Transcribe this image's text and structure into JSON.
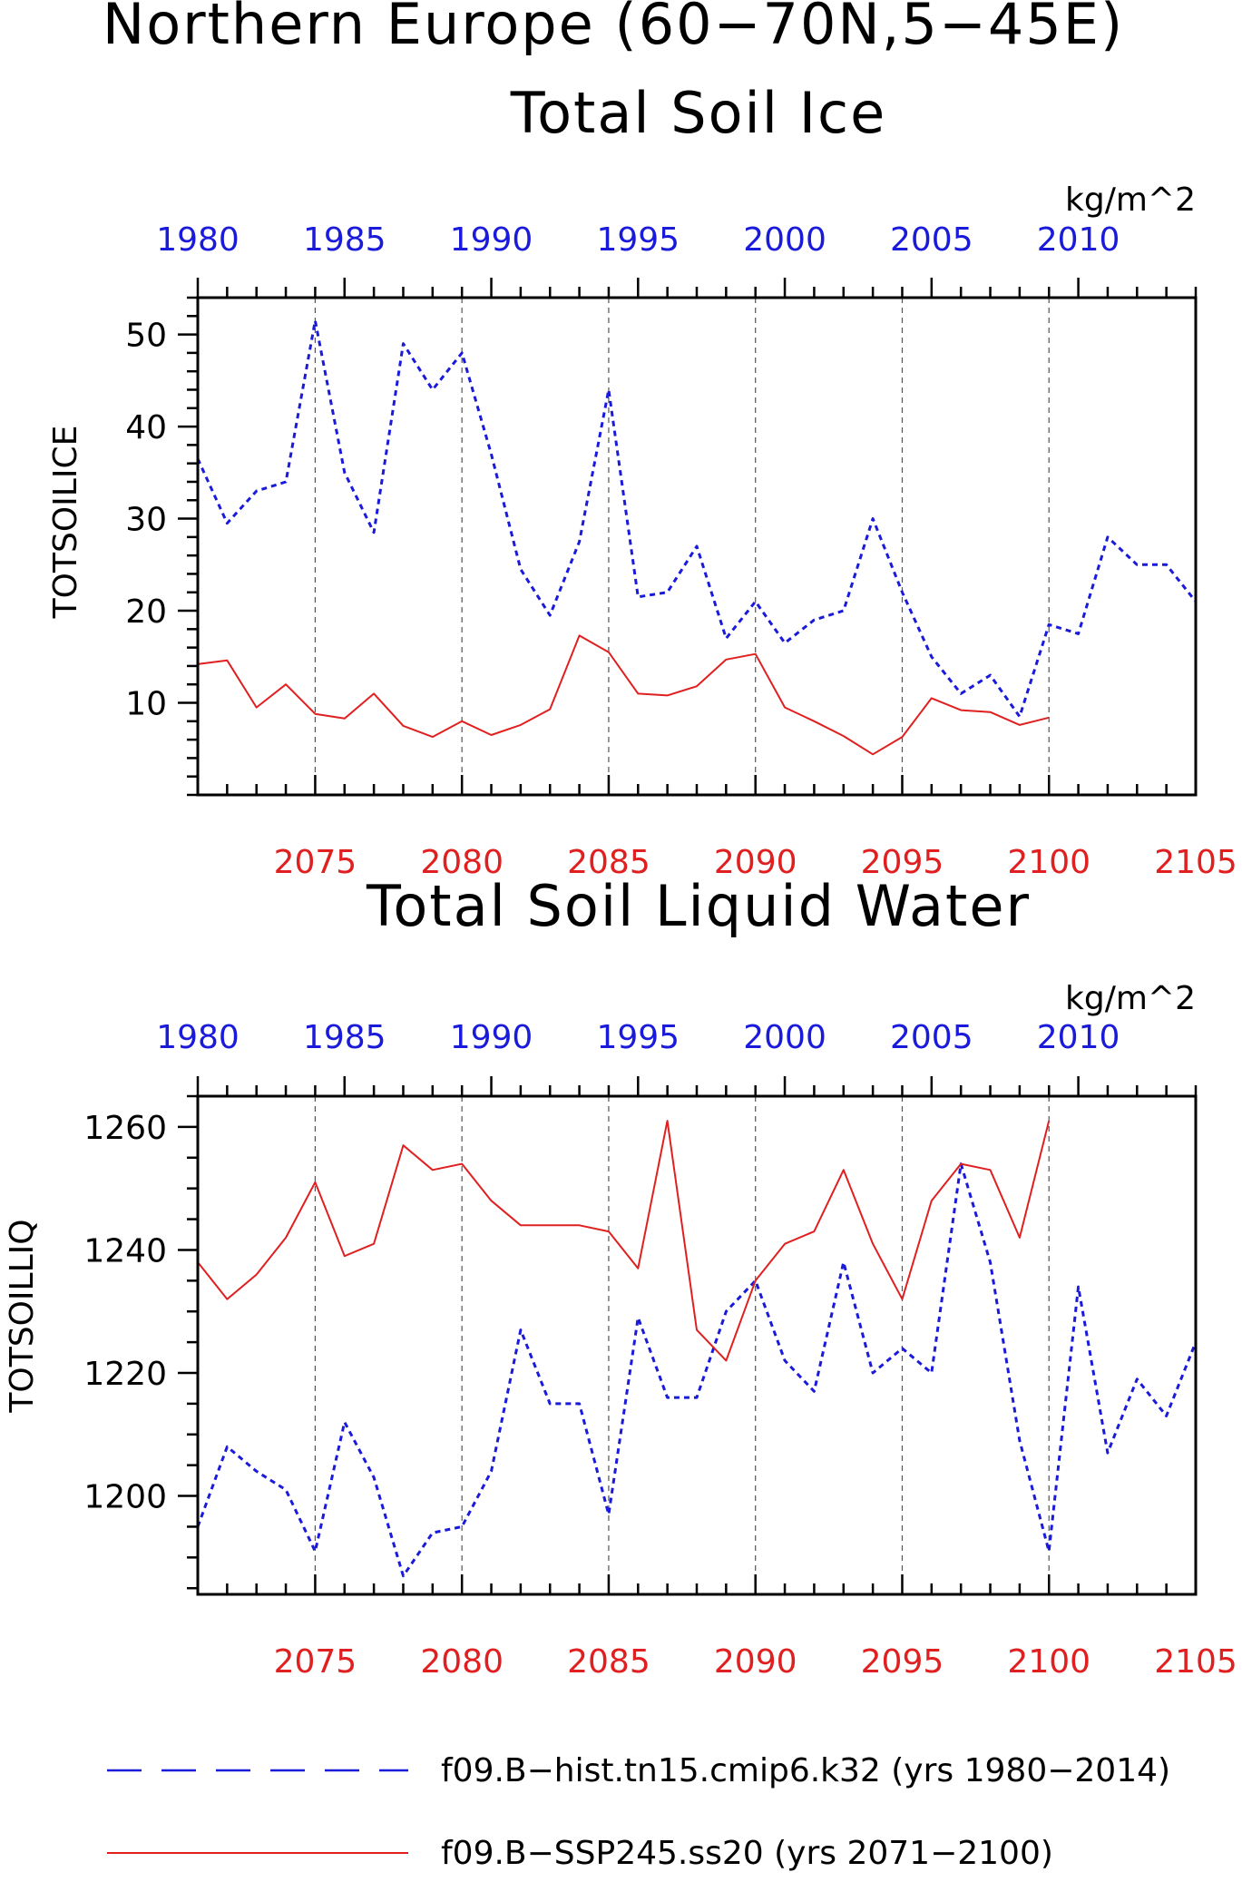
{
  "figure_title": "Northern Europe (60−70N,5−45E)",
  "colors": {
    "hist": "#1a1adb",
    "ssp": "#e02020",
    "axis": "#000000",
    "grid": "#555555"
  },
  "legend": [
    {
      "label": "f09.B−hist.tn15.cmip6.k32 (yrs 1980−2014)",
      "color": "#1a1adb",
      "style": "dashed"
    },
    {
      "label": "f09.B−SSP245.ss20 (yrs 2071−2100)",
      "color": "#e02020",
      "style": "solid"
    }
  ],
  "chart_data": [
    {
      "type": "line",
      "title": "Total Soil Ice",
      "units": "kg/m^2",
      "ylabel": "TOTSOILICE",
      "ylim": [
        0,
        54
      ],
      "yticks": [
        10,
        20,
        30,
        40,
        50
      ],
      "ytick_labels": [
        "10",
        "20",
        "30",
        "40",
        "50"
      ],
      "top_x_ticks": [
        1980,
        1985,
        1990,
        1995,
        2000,
        2005,
        2010
      ],
      "top_x_tick_labels": [
        "1980",
        "1985",
        "1990",
        "1995",
        "2000",
        "2005",
        "2010"
      ],
      "bottom_x_ticks": [
        2075,
        2080,
        2085,
        2090,
        2095,
        2100,
        2105
      ],
      "bottom_x_tick_labels": [
        "2075",
        "2080",
        "2085",
        "2090",
        "2095",
        "2100",
        "2105"
      ],
      "grid": "dashed vertical at bottom ticks",
      "series": [
        {
          "name": "f09.B−hist.tn15.cmip6.k32 (yrs 1980−2014)",
          "style": "dashed",
          "color": "#1a1adb",
          "x": [
            1980,
            1981,
            1982,
            1983,
            1984,
            1985,
            1986,
            1987,
            1988,
            1989,
            1990,
            1991,
            1992,
            1993,
            1994,
            1995,
            1996,
            1997,
            1998,
            1999,
            2000,
            2001,
            2002,
            2003,
            2004,
            2005,
            2006,
            2007,
            2008,
            2009,
            2010,
            2011,
            2012,
            2013,
            2014
          ],
          "values": [
            36.5,
            29.5,
            33,
            34,
            51.5,
            35,
            28.5,
            49,
            44,
            48,
            37,
            24.5,
            19.5,
            27.5,
            44,
            21.5,
            22,
            27,
            17,
            21,
            16.5,
            19,
            20,
            30,
            22,
            15,
            11,
            13,
            8.5,
            18.5,
            17.5,
            28,
            25,
            25,
            21
          ]
        },
        {
          "name": "f09.B−SSP245.ss20 (yrs 2071−2100)",
          "style": "solid",
          "color": "#e02020",
          "x": [
            2071,
            2072,
            2073,
            2074,
            2075,
            2076,
            2077,
            2078,
            2079,
            2080,
            2081,
            2082,
            2083,
            2084,
            2085,
            2086,
            2087,
            2088,
            2089,
            2090,
            2091,
            2092,
            2093,
            2094,
            2095,
            2096,
            2097,
            2098,
            2099,
            2100
          ],
          "values": [
            14.2,
            14.6,
            9.5,
            12,
            8.8,
            8.3,
            11,
            7.5,
            6.3,
            8,
            6.5,
            7.6,
            9.3,
            17.3,
            15.5,
            11,
            10.8,
            11.8,
            14.7,
            15.3,
            9.5,
            8,
            6.4,
            4.4,
            6.3,
            10.5,
            9.2,
            9,
            7.6,
            8.4
          ]
        }
      ]
    },
    {
      "type": "line",
      "title": "Total Soil Liquid Water",
      "units": "kg/m^2",
      "ylabel": "TOTSOILLIQ",
      "ylim": [
        1184,
        1265
      ],
      "yticks": [
        1200,
        1220,
        1240,
        1260
      ],
      "ytick_labels": [
        "1200",
        "1220",
        "1240",
        "1260"
      ],
      "top_x_ticks": [
        1980,
        1985,
        1990,
        1995,
        2000,
        2005,
        2010
      ],
      "top_x_tick_labels": [
        "1980",
        "1985",
        "1990",
        "1995",
        "2000",
        "2005",
        "2010"
      ],
      "bottom_x_ticks": [
        2075,
        2080,
        2085,
        2090,
        2095,
        2100,
        2105
      ],
      "bottom_x_tick_labels": [
        "2075",
        "2080",
        "2085",
        "2090",
        "2095",
        "2100",
        "2105"
      ],
      "grid": "dashed vertical at bottom ticks",
      "series": [
        {
          "name": "f09.B−hist.tn15.cmip6.k32 (yrs 1980−2014)",
          "style": "dashed",
          "color": "#1a1adb",
          "x": [
            1980,
            1981,
            1982,
            1983,
            1984,
            1985,
            1986,
            1987,
            1988,
            1989,
            1990,
            1991,
            1992,
            1993,
            1994,
            1995,
            1996,
            1997,
            1998,
            1999,
            2000,
            2001,
            2002,
            2003,
            2004,
            2005,
            2006,
            2007,
            2008,
            2009,
            2010,
            2011,
            2012,
            2013,
            2014
          ],
          "values": [
            1195,
            1208,
            1204,
            1201,
            1191,
            1212,
            1203,
            1187,
            1194,
            1195,
            1204,
            1227,
            1215,
            1215,
            1197,
            1229,
            1216,
            1216,
            1230,
            1235,
            1222,
            1217,
            1238,
            1220,
            1224,
            1220,
            1254,
            1238,
            1209,
            1191,
            1234,
            1207,
            1219,
            1213,
            1225
          ]
        },
        {
          "name": "f09.B−SSP245.ss20 (yrs 2071−2100)",
          "style": "solid",
          "color": "#e02020",
          "x": [
            2071,
            2072,
            2073,
            2074,
            2075,
            2076,
            2077,
            2078,
            2079,
            2080,
            2081,
            2082,
            2083,
            2084,
            2085,
            2086,
            2087,
            2088,
            2089,
            2090,
            2091,
            2092,
            2093,
            2094,
            2095,
            2096,
            2097,
            2098,
            2099,
            2100
          ],
          "values": [
            1238,
            1232,
            1236,
            1242,
            1251,
            1239,
            1241,
            1257,
            1253,
            1254,
            1248,
            1244,
            1244,
            1244,
            1243,
            1237,
            1261,
            1227,
            1222,
            1235,
            1241,
            1243,
            1253,
            1241,
            1232,
            1248,
            1254,
            1253,
            1242,
            1261
          ]
        }
      ]
    }
  ]
}
